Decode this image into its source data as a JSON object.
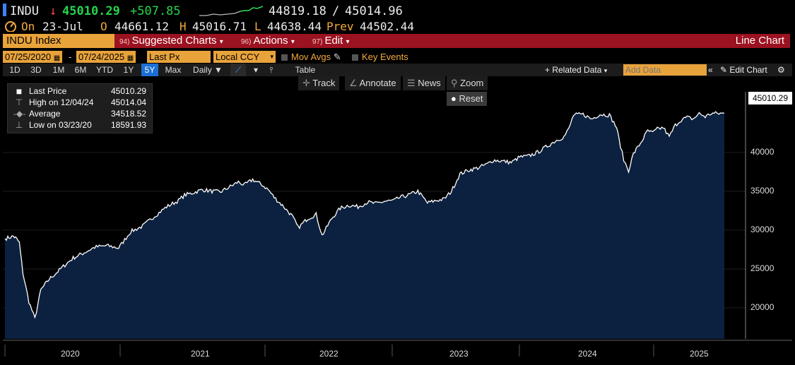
{
  "header": {
    "ticker": "INDU",
    "arrow": "↓",
    "last": "45010.29",
    "change": "+507.85",
    "range_low": "44819.18",
    "range_sep": "/",
    "range_high": "45014.96",
    "on_label": "On",
    "date": "23-Jul",
    "open_label": "O",
    "open": "44661.12",
    "high_label": "H",
    "high": "45016.71",
    "low_label": "L",
    "low": "44638.44",
    "prev_label": "Prev",
    "prev": "44502.44"
  },
  "menubar": {
    "security": "INDU Index",
    "items": [
      {
        "num": "94)",
        "label": "Suggested Charts",
        "caret": "▾"
      },
      {
        "num": "96)",
        "label": "Actions",
        "caret": "▾"
      },
      {
        "num": "97)",
        "label": "Edit",
        "caret": "▾"
      }
    ],
    "title": "Line Chart"
  },
  "controls": {
    "start_date": "07/25/2020",
    "dash": "-",
    "end_date": "07/24/2025",
    "field": "Last Px",
    "currency": "Local CCY",
    "mov_avgs": "Mov Avgs",
    "key_events": "Key Events"
  },
  "periods": [
    "1D",
    "3D",
    "1M",
    "6M",
    "YTD",
    "1Y",
    "5Y",
    "Max"
  ],
  "active_period": "5Y",
  "frequency": "Daily",
  "table_label": "Table",
  "related_data": "+ Related Data",
  "add_data_placeholder": "Add Data",
  "edit_chart": "Edit Chart",
  "tools": {
    "track": "Track",
    "annotate": "Annotate",
    "news": "News",
    "zoom": "Zoom",
    "reset": "Reset"
  },
  "legend": [
    {
      "name": "Last Price",
      "value": "45010.29"
    },
    {
      "name": "High on 12/04/24",
      "value": "45014.04"
    },
    {
      "name": "Average",
      "value": "34518.52"
    },
    {
      "name": "Low on 03/23/20",
      "value": "18591.93"
    }
  ],
  "colors": {
    "accent": "#e8a33b",
    "menubar": "#9b1220",
    "area_fill": "#0c2140",
    "line": "#ffffff",
    "up": "#27d34c",
    "down": "#ff4444"
  },
  "chart_data": {
    "type": "area",
    "ylim": [
      16000,
      50000
    ],
    "yticks": [
      20000,
      25000,
      30000,
      35000,
      40000
    ],
    "last_label": "45010.29",
    "x_categories": [
      "2020",
      "2021",
      "2022",
      "2023",
      "2024",
      "2025"
    ],
    "series": [
      {
        "x": [
          2020.55,
          2020.62,
          2020.64,
          2020.67,
          2020.7,
          2020.75,
          2020.8,
          2020.85,
          2020.92,
          2020.98,
          2021.05,
          2021.12,
          2021.2,
          2021.3,
          2021.4,
          2021.5,
          2021.6,
          2021.7,
          2021.8,
          2021.9,
          2022.0,
          2022.05,
          2022.12,
          2022.2,
          2022.28,
          2022.35,
          2022.42,
          2022.5,
          2022.55,
          2022.62,
          2022.7,
          2022.75,
          2022.8,
          2022.88,
          2022.95,
          2023.0,
          2023.08,
          2023.15,
          2023.2,
          2023.28,
          2023.35,
          2023.42,
          2023.5,
          2023.58,
          2023.65,
          2023.72,
          2023.8,
          2023.85,
          2023.92,
          2024.0,
          2024.08,
          2024.15,
          2024.22,
          2024.28,
          2024.35,
          2024.42,
          2024.5,
          2024.58,
          2024.63,
          2024.7,
          2024.78,
          2024.85,
          2024.92,
          2025.0,
          2025.08,
          2025.15,
          2025.22,
          2025.26,
          2025.3,
          2025.38,
          2025.45,
          2025.52,
          2025.6,
          2025.66,
          2025.68,
          2025.72,
          2025.76,
          2025.8,
          2025.86,
          2025.92,
          2025.96,
          2026.0,
          2026.05,
          2026.1,
          2026.15,
          2026.2,
          2026.25,
          2026.3,
          2026.35,
          2026.4,
          2026.45,
          2026.5,
          2026.54,
          2026.56
        ],
        "values": [
          28900,
          29200,
          29000,
          28400,
          24500,
          20800,
          18600,
          22300,
          23700,
          24500,
          25500,
          26400,
          27000,
          27800,
          28000,
          27700,
          29800,
          30500,
          31800,
          33000,
          33800,
          34500,
          34800,
          35200,
          35000,
          34900,
          35500,
          36200,
          35800,
          36500,
          35800,
          35200,
          34200,
          33000,
          31800,
          30300,
          31500,
          32000,
          29300,
          31500,
          32800,
          33200,
          33000,
          33600,
          33400,
          33700,
          33800,
          34200,
          34500,
          35000,
          33500,
          33800,
          34000,
          35000,
          37200,
          37700,
          38000,
          38500,
          39000,
          38900,
          38700,
          39400,
          39500,
          40000,
          40800,
          41500,
          42000,
          43000,
          44800,
          44900,
          44300,
          44900,
          44800,
          43200,
          41700,
          39000,
          37700,
          39800,
          41200,
          42800,
          42500,
          43000,
          43200,
          42000,
          43500,
          44200,
          44500,
          44300,
          45000,
          44600,
          45010,
          45010,
          45010,
          45010
        ]
      }
    ]
  }
}
